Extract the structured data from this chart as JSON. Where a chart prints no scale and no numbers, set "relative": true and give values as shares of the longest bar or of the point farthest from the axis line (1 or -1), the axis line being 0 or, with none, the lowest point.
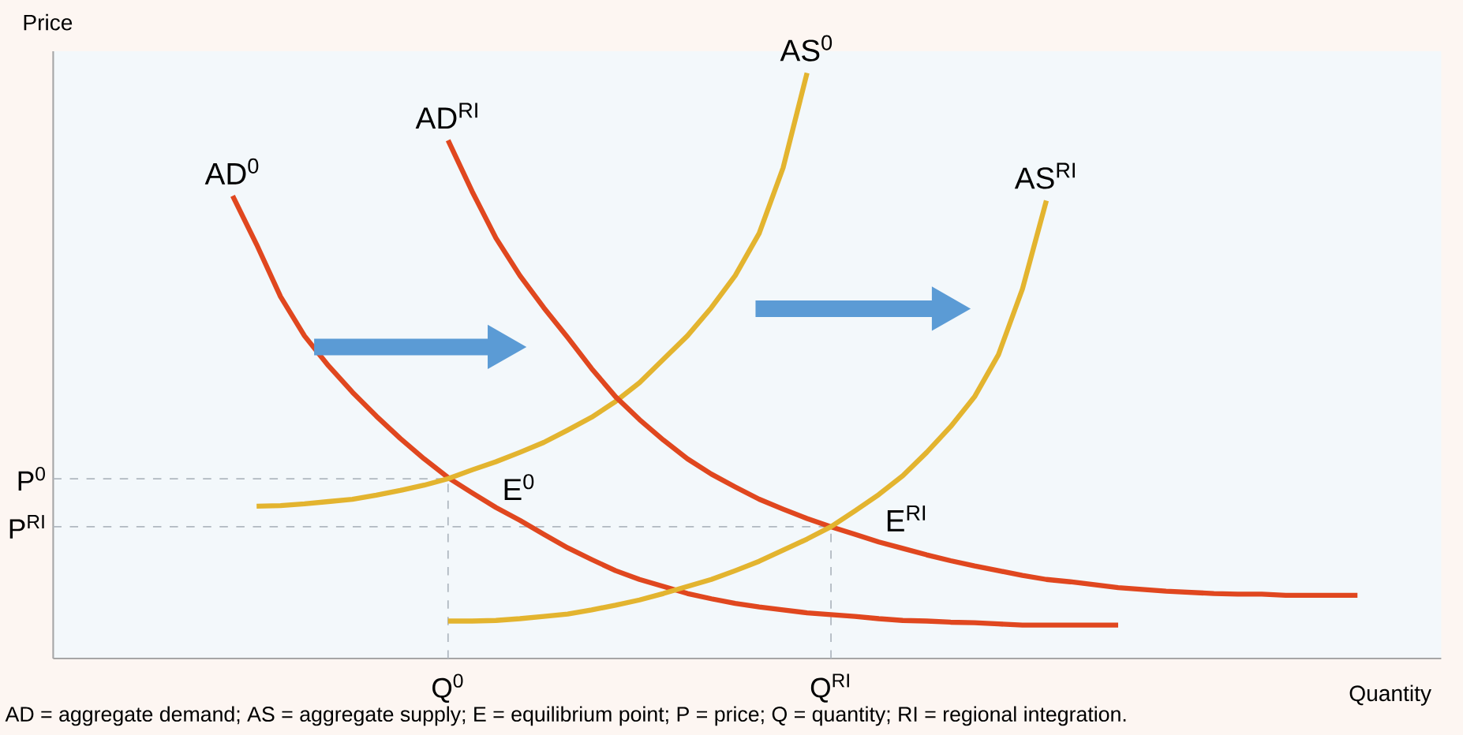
{
  "chart_data": {
    "type": "line",
    "relative": true,
    "xlabel": "Quantity",
    "ylabel": "Price",
    "marker": "none",
    "line_style": "solid",
    "categories": [
      null,
      null,
      null,
      null,
      null,
      null,
      null,
      null,
      null,
      null,
      null,
      null,
      null,
      null,
      null,
      null,
      "Q$^{0}$",
      null,
      null,
      null,
      null,
      null,
      null,
      null,
      null,
      null,
      null,
      null,
      null,
      null,
      null,
      null,
      "Q$^{RI}$",
      null,
      null,
      null,
      null,
      null,
      null,
      null,
      null,
      null,
      null,
      null,
      null,
      null,
      null,
      null,
      null,
      null,
      null,
      null,
      null,
      null,
      null,
      null,
      null,
      null
    ],
    "series": [
      {
        "name": "AD$^{0}$",
        "color": "#e0471f",
        "values": [
          null,
          null,
          null,
          null,
          null,
          null,
          null,
          0.79,
          0.707,
          0.618,
          0.551,
          0.5,
          0.455,
          0.414,
          0.376,
          0.341,
          0.309,
          0.283,
          0.258,
          0.236,
          0.212,
          0.189,
          0.169,
          0.15,
          0.135,
          0.123,
          0.111,
          0.102,
          0.094,
          0.088,
          0.083,
          0.078,
          0.075,
          0.072,
          0.068,
          0.065,
          0.064,
          0.062,
          0.061,
          0.059,
          0.057,
          0.057,
          0.057,
          0.057,
          0.057,
          null,
          null,
          null,
          null,
          null,
          null,
          null,
          null,
          null,
          null,
          null,
          null,
          null
        ]
      },
      {
        "name": "AS$^{0}$",
        "color": "#e3b42f",
        "values": [
          null,
          null,
          null,
          null,
          null,
          null,
          null,
          null,
          0.26,
          0.261,
          0.264,
          0.268,
          0.272,
          0.279,
          0.287,
          0.296,
          0.307,
          0.322,
          0.336,
          0.352,
          0.369,
          0.39,
          0.412,
          0.439,
          0.471,
          0.511,
          0.551,
          0.599,
          0.654,
          0.726,
          0.838,
          1.0,
          null,
          null,
          null,
          null,
          null,
          null,
          null,
          null,
          null,
          null,
          null,
          null,
          null,
          null,
          null,
          null,
          null,
          null,
          null,
          null,
          null,
          null,
          null,
          null,
          null,
          null
        ]
      },
      {
        "name": "AD$^{RI}$",
        "color": "#e0471f",
        "values": [
          null,
          null,
          null,
          null,
          null,
          null,
          null,
          null,
          null,
          null,
          null,
          null,
          null,
          null,
          null,
          null,
          0.885,
          0.798,
          0.718,
          0.654,
          0.599,
          0.548,
          0.495,
          0.447,
          0.408,
          0.373,
          0.341,
          0.315,
          0.293,
          0.272,
          0.255,
          0.239,
          0.225,
          0.212,
          0.199,
          0.188,
          0.177,
          0.167,
          0.158,
          0.15,
          0.142,
          0.135,
          0.131,
          0.126,
          0.121,
          0.118,
          0.115,
          0.113,
          0.111,
          0.11,
          0.11,
          0.108,
          0.108,
          0.108,
          0.108,
          null,
          null,
          null
        ]
      },
      {
        "name": "AS$^{RI}$",
        "color": "#e3b42f",
        "values": [
          null,
          null,
          null,
          null,
          null,
          null,
          null,
          null,
          null,
          null,
          null,
          null,
          null,
          null,
          null,
          null,
          0.064,
          0.064,
          0.065,
          0.068,
          0.072,
          0.076,
          0.083,
          0.091,
          0.1,
          0.111,
          0.123,
          0.135,
          0.15,
          0.166,
          0.185,
          0.204,
          0.225,
          0.252,
          0.28,
          0.312,
          0.352,
          0.396,
          0.447,
          0.519,
          0.631,
          0.782,
          null,
          null,
          null,
          null,
          null,
          null,
          null,
          null,
          null,
          null,
          null,
          null,
          null,
          null,
          null,
          null
        ]
      }
    ],
    "ref_lines": [
      {
        "axis": "y",
        "value": 0.307,
        "label": "P$^{0}$",
        "color": "#b0b8c0",
        "line_style": "dashed"
      },
      {
        "axis": "y",
        "value": 0.225,
        "label": "P$^{RI}$",
        "color": "#b0b8c0",
        "line_style": "dashed"
      },
      {
        "axis": "x",
        "value": "Q$^{0}$",
        "color": "#b0b8c0",
        "line_style": "dashed"
      },
      {
        "axis": "x",
        "value": "Q$^{RI}$",
        "color": "#b0b8c0",
        "line_style": "dashed"
      }
    ],
    "annotations": [
      {
        "text": "E$^{0}$",
        "x": "Q$^{0}$",
        "y": 0.307
      },
      {
        "text": "E$^{RI}$",
        "x": "Q$^{RI}$",
        "y": 0.225
      },
      "AD = aggregate demand; AS = aggregate supply; E = equilibrium point; P = price; Q = quantity; RI = regional integration."
    ]
  }
}
